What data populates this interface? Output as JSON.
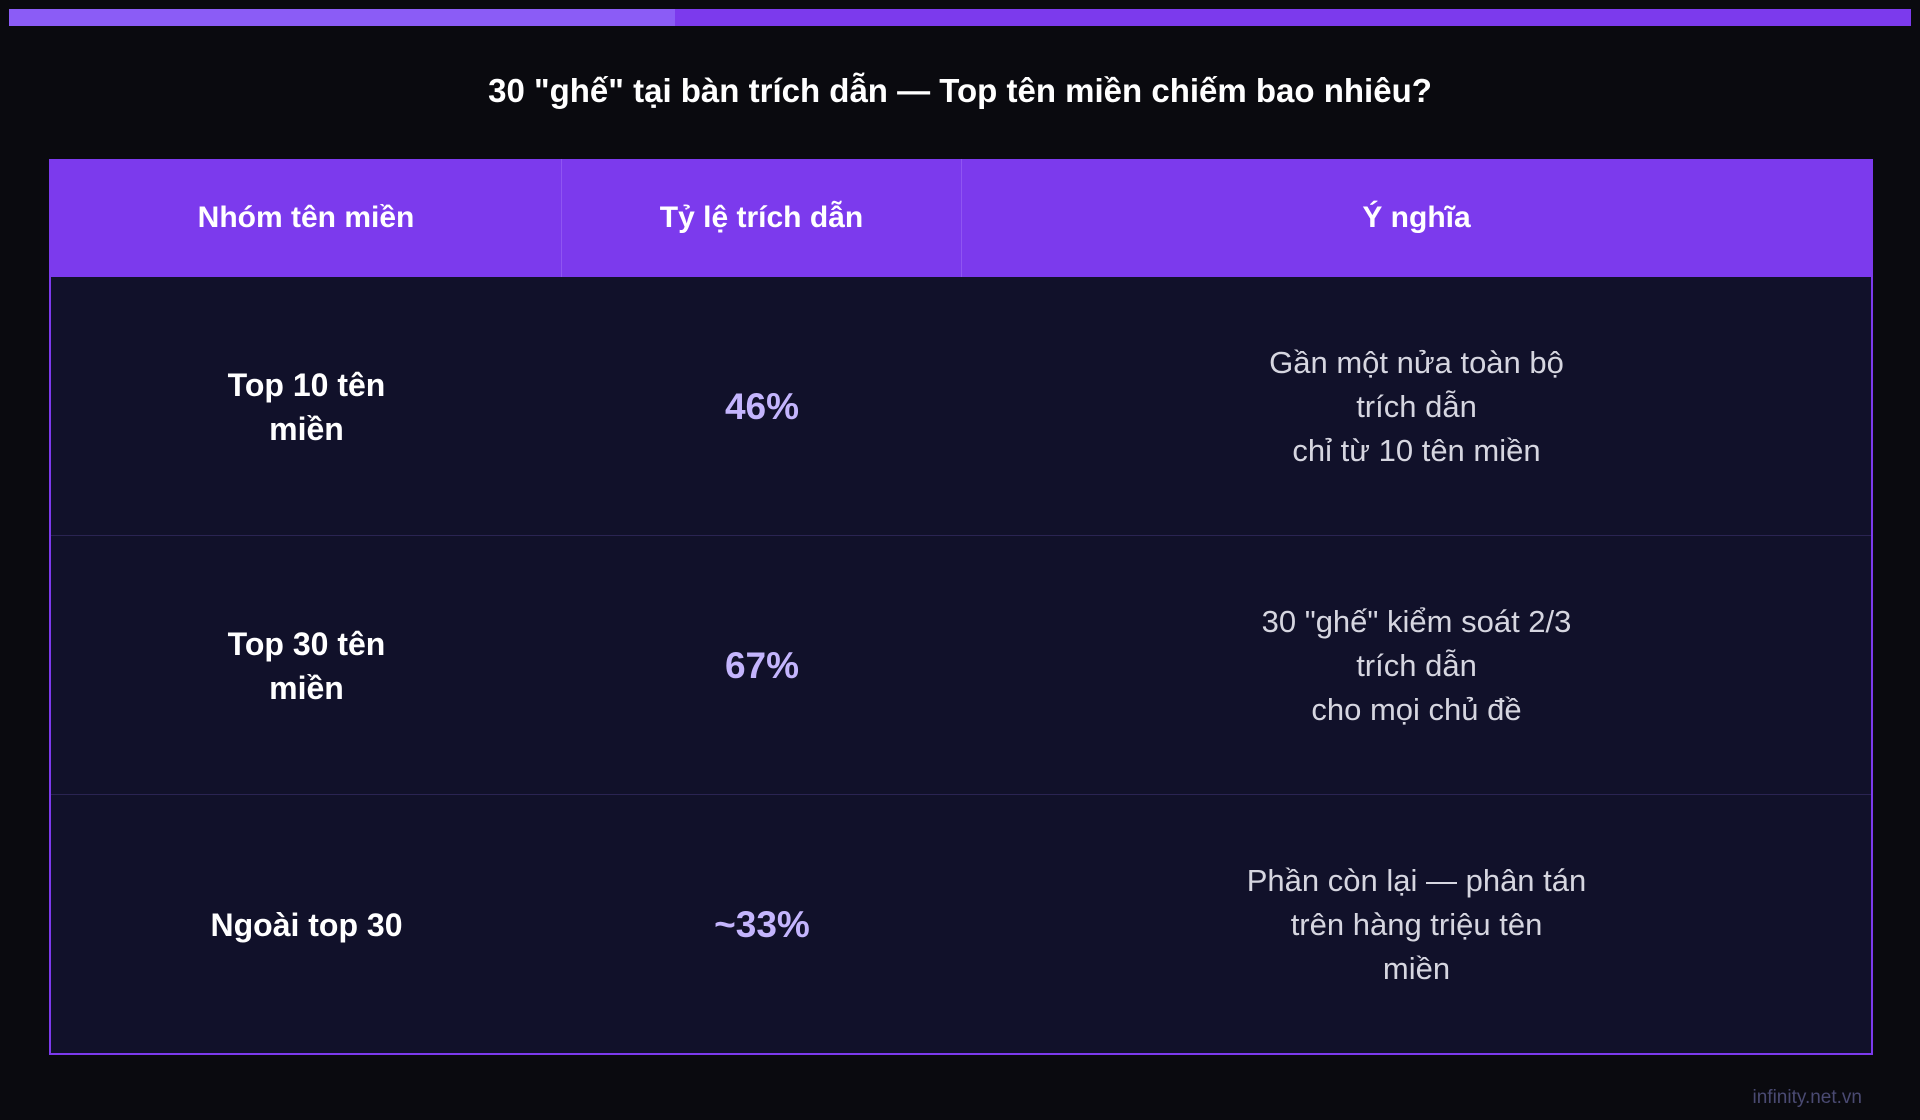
{
  "header": {
    "title": "30 \"ghế\" tại bàn trích dẫn — Top tên miền chiếm bao nhiêu?"
  },
  "table": {
    "columns": [
      "Nhóm tên miền",
      "Tỷ lệ trích dẫn",
      "Ý nghĩa"
    ],
    "rows": [
      [
        [
          "Top 10 tên",
          "miền"
        ],
        [
          "46%"
        ],
        [
          "Gần một nửa toàn bộ",
          "trích dẫn",
          "chỉ từ 10 tên miền"
        ]
      ],
      [
        [
          "Top 30 tên",
          "miền"
        ],
        [
          "67%"
        ],
        [
          "30 \"ghế\" kiểm soát 2/3",
          "trích dẫn",
          "cho mọi chủ đề"
        ]
      ],
      [
        [
          "Ngoài top 30"
        ],
        [
          "~33%"
        ],
        [
          "Phần còn lại — phân tán",
          "trên hàng triệu tên",
          "miền"
        ]
      ]
    ]
  },
  "footer": {
    "source": "infinity.net.vn"
  }
}
